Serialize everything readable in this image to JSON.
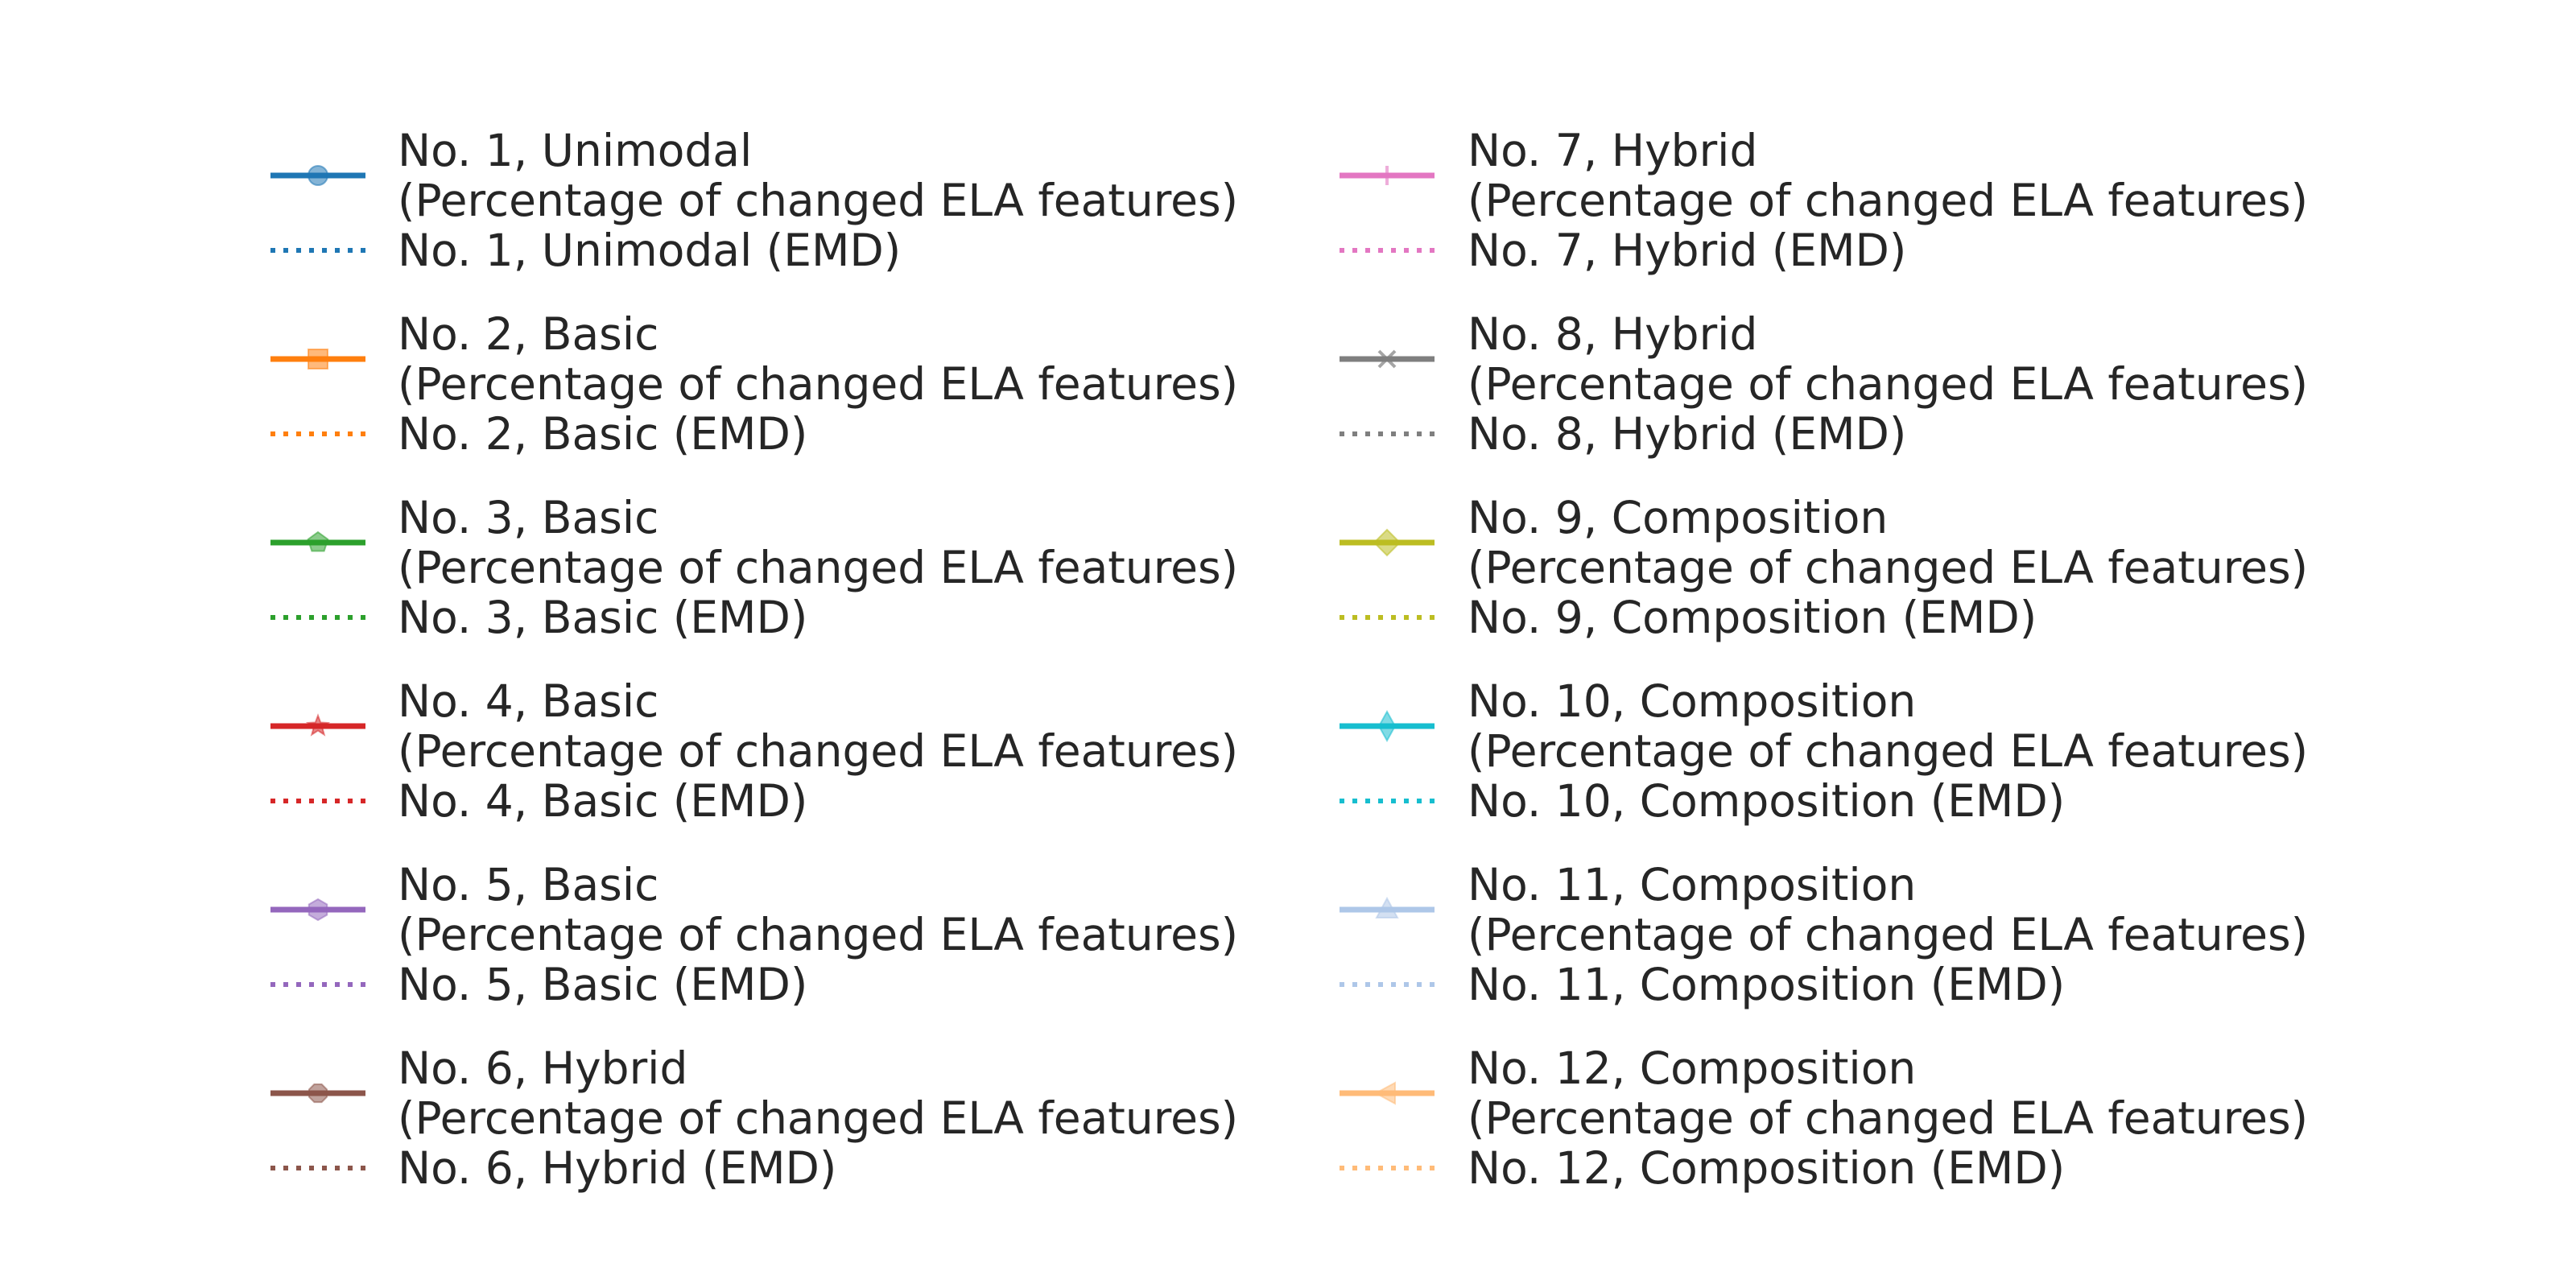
{
  "chart_data": {
    "type": "line",
    "title": "",
    "legend": {
      "placement": "center",
      "columns": 2,
      "entries": [
        {
          "label_lines": [
            "No. 1, Unimodal",
            "(Percentage of changed ELA features)"
          ],
          "color": "#1f77b4",
          "linestyle": "solid",
          "marker": "circle"
        },
        {
          "label_lines": [
            "No. 1, Unimodal (EMD)"
          ],
          "color": "#1f77b4",
          "linestyle": "dotted",
          "marker": "none"
        },
        {
          "label_lines": [
            "No. 2, Basic",
            "(Percentage of changed ELA features)"
          ],
          "color": "#ff7f0e",
          "linestyle": "solid",
          "marker": "square"
        },
        {
          "label_lines": [
            "No. 2, Basic (EMD)"
          ],
          "color": "#ff7f0e",
          "linestyle": "dotted",
          "marker": "none"
        },
        {
          "label_lines": [
            "No. 3, Basic",
            "(Percentage of changed ELA features)"
          ],
          "color": "#2ca02c",
          "linestyle": "solid",
          "marker": "pentagon"
        },
        {
          "label_lines": [
            "No. 3, Basic (EMD)"
          ],
          "color": "#2ca02c",
          "linestyle": "dotted",
          "marker": "none"
        },
        {
          "label_lines": [
            "No. 4, Basic",
            "(Percentage of changed ELA features)"
          ],
          "color": "#d62728",
          "linestyle": "solid",
          "marker": "star"
        },
        {
          "label_lines": [
            "No. 4, Basic (EMD)"
          ],
          "color": "#d62728",
          "linestyle": "dotted",
          "marker": "none"
        },
        {
          "label_lines": [
            "No. 5, Basic",
            "(Percentage of changed ELA features)"
          ],
          "color": "#9467bd",
          "linestyle": "solid",
          "marker": "hexagon"
        },
        {
          "label_lines": [
            "No. 5, Basic (EMD)"
          ],
          "color": "#9467bd",
          "linestyle": "dotted",
          "marker": "none"
        },
        {
          "label_lines": [
            "No. 6, Hybrid",
            "(Percentage of changed ELA features)"
          ],
          "color": "#8c564b",
          "linestyle": "solid",
          "marker": "octagon"
        },
        {
          "label_lines": [
            "No. 6, Hybrid (EMD)"
          ],
          "color": "#8c564b",
          "linestyle": "dotted",
          "marker": "none"
        },
        {
          "label_lines": [
            "No. 7, Hybrid",
            "(Percentage of changed ELA features)"
          ],
          "color": "#e377c2",
          "linestyle": "solid",
          "marker": "plus"
        },
        {
          "label_lines": [
            "No. 7, Hybrid (EMD)"
          ],
          "color": "#e377c2",
          "linestyle": "dotted",
          "marker": "none"
        },
        {
          "label_lines": [
            "No. 8, Hybrid",
            "(Percentage of changed ELA features)"
          ],
          "color": "#7f7f7f",
          "linestyle": "solid",
          "marker": "x"
        },
        {
          "label_lines": [
            "No. 8, Hybrid (EMD)"
          ],
          "color": "#7f7f7f",
          "linestyle": "dotted",
          "marker": "none"
        },
        {
          "label_lines": [
            "No. 9, Composition",
            "(Percentage of changed ELA features)"
          ],
          "color": "#bcbd22",
          "linestyle": "solid",
          "marker": "diamond"
        },
        {
          "label_lines": [
            "No. 9, Composition (EMD)"
          ],
          "color": "#bcbd22",
          "linestyle": "dotted",
          "marker": "none"
        },
        {
          "label_lines": [
            "No. 10, Composition",
            "(Percentage of changed ELA features)"
          ],
          "color": "#17becf",
          "linestyle": "solid",
          "marker": "thin-diamond"
        },
        {
          "label_lines": [
            "No. 10, Composition (EMD)"
          ],
          "color": "#17becf",
          "linestyle": "dotted",
          "marker": "none"
        },
        {
          "label_lines": [
            "No. 11, Composition",
            "(Percentage of changed ELA features)"
          ],
          "color": "#aec7e8",
          "linestyle": "solid",
          "marker": "triangle-up"
        },
        {
          "label_lines": [
            "No. 11, Composition (EMD)"
          ],
          "color": "#aec7e8",
          "linestyle": "dotted",
          "marker": "none"
        },
        {
          "label_lines": [
            "No. 12, Composition",
            "(Percentage of changed ELA features)"
          ],
          "color": "#ffbb78",
          "linestyle": "solid",
          "marker": "triangle-left"
        },
        {
          "label_lines": [
            "No. 12, Composition (EMD)"
          ],
          "color": "#ffbb78",
          "linestyle": "dotted",
          "marker": "none"
        }
      ]
    }
  }
}
